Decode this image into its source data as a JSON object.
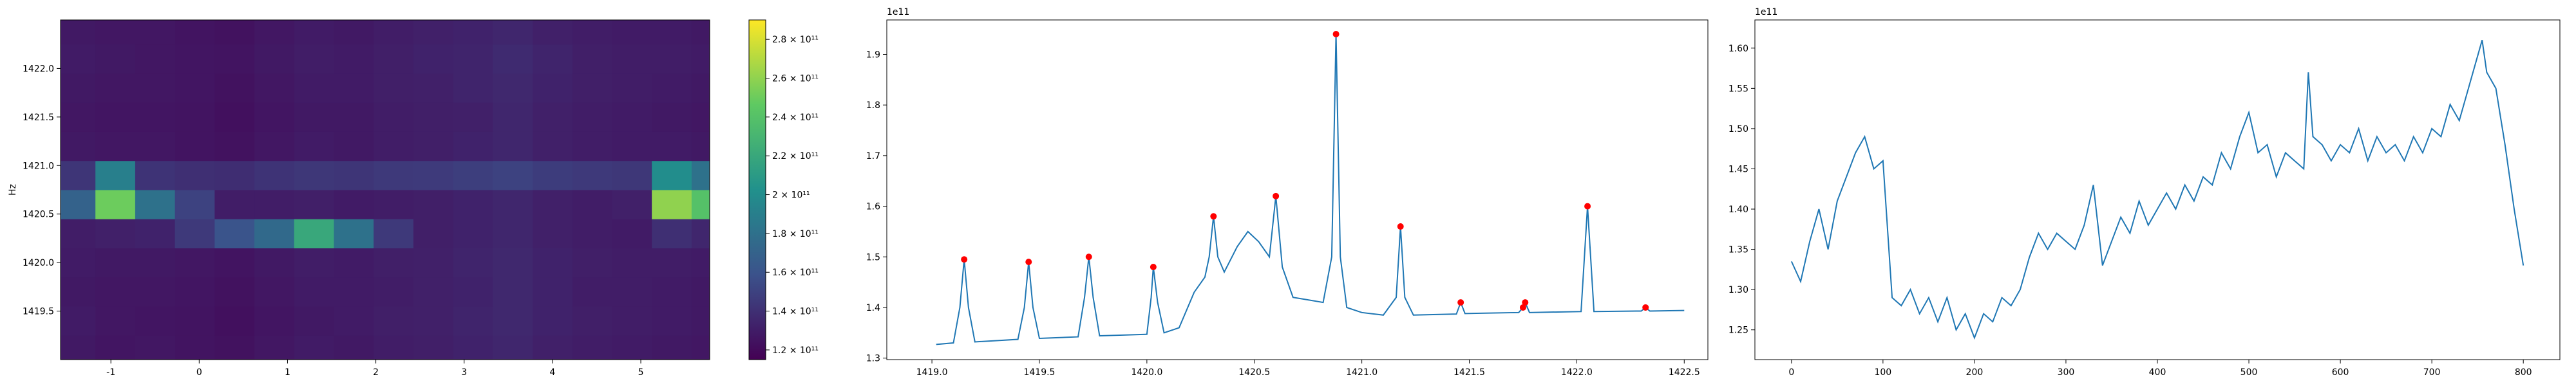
{
  "chart_data": [
    {
      "type": "heatmap",
      "ylabel": "Hz",
      "x": [
        -1.4,
        -0.95,
        -0.5,
        -0.05,
        0.4,
        0.85,
        1.3,
        1.75,
        2.2,
        2.65,
        3.1,
        3.55,
        4.0,
        4.45,
        4.9,
        5.35,
        5.8
      ],
      "y": [
        1419.1,
        1419.4,
        1419.7,
        1420.0,
        1420.3,
        1420.6,
        1420.9,
        1421.2,
        1421.5,
        1421.8,
        1422.1,
        1422.4
      ],
      "z": [
        [
          128000000000.0,
          126000000000.0,
          127000000000.0,
          125000000000.0,
          124000000000.0,
          127000000000.0,
          129000000000.0,
          128000000000.0,
          130000000000.0,
          131000000000.0,
          133000000000.0,
          135000000000.0,
          132000000000.0,
          130000000000.0,
          129000000000.0,
          128000000000.0,
          127000000000.0
        ],
        [
          129000000000.0,
          127000000000.0,
          126000000000.0,
          125000000000.0,
          123000000000.0,
          126000000000.0,
          128000000000.0,
          129000000000.0,
          131000000000.0,
          132000000000.0,
          134000000000.0,
          136000000000.0,
          133000000000.0,
          131000000000.0,
          130000000000.0,
          129000000000.0,
          128000000000.0
        ],
        [
          128000000000.0,
          127000000000.0,
          127000000000.0,
          126000000000.0,
          124000000000.0,
          127000000000.0,
          129000000000.0,
          129000000000.0,
          130000000000.0,
          132000000000.0,
          133000000000.0,
          136000000000.0,
          133000000000.0,
          130000000000.0,
          130000000000.0,
          129000000000.0,
          128000000000.0
        ],
        [
          129000000000.0,
          128000000000.0,
          128000000000.0,
          127000000000.0,
          125000000000.0,
          128000000000.0,
          130000000000.0,
          129000000000.0,
          131000000000.0,
          132000000000.0,
          134000000000.0,
          136000000000.0,
          133000000000.0,
          131000000000.0,
          130000000000.0,
          130000000000.0,
          129000000000.0
        ],
        [
          130000000000.0,
          132000000000.0,
          133000000000.0,
          145000000000.0,
          160000000000.0,
          175000000000.0,
          220000000000.0,
          180000000000.0,
          145000000000.0,
          131000000000.0,
          133000000000.0,
          135000000000.0,
          132000000000.0,
          130000000000.0,
          129000000000.0,
          140000000000.0,
          135000000000.0
        ],
        [
          170000000000.0,
          250000000000.0,
          180000000000.0,
          150000000000.0,
          130000000000.0,
          130000000000.0,
          131000000000.0,
          129000000000.0,
          130000000000.0,
          131000000000.0,
          133000000000.0,
          135000000000.0,
          132000000000.0,
          130000000000.0,
          132000000000.0,
          260000000000.0,
          240000000000.0
        ],
        [
          143000000000.0,
          190000000000.0,
          142000000000.0,
          140000000000.0,
          139000000000.0,
          142000000000.0,
          144000000000.0,
          143000000000.0,
          145000000000.0,
          146000000000.0,
          148000000000.0,
          150000000000.0,
          147000000000.0,
          145000000000.0,
          144000000000.0,
          200000000000.0,
          180000000000.0
        ],
        [
          128000000000.0,
          127000000000.0,
          127000000000.0,
          125000000000.0,
          124000000000.0,
          127000000000.0,
          129000000000.0,
          128000000000.0,
          130000000000.0,
          131000000000.0,
          133000000000.0,
          135000000000.0,
          132000000000.0,
          130000000000.0,
          129000000000.0,
          129000000000.0,
          128000000000.0
        ],
        [
          127000000000.0,
          126000000000.0,
          126000000000.0,
          125000000000.0,
          123000000000.0,
          126000000000.0,
          128000000000.0,
          128000000000.0,
          130000000000.0,
          131000000000.0,
          132000000000.0,
          135000000000.0,
          132000000000.0,
          130000000000.0,
          129000000000.0,
          128000000000.0,
          127000000000.0
        ],
        [
          128000000000.0,
          127000000000.0,
          127000000000.0,
          126000000000.0,
          124000000000.0,
          127000000000.0,
          129000000000.0,
          129000000000.0,
          131000000000.0,
          132000000000.0,
          134000000000.0,
          136000000000.0,
          133000000000.0,
          131000000000.0,
          130000000000.0,
          129000000000.0,
          128000000000.0
        ],
        [
          129000000000.0,
          128000000000.0,
          127000000000.0,
          126000000000.0,
          125000000000.0,
          128000000000.0,
          130000000000.0,
          129000000000.0,
          131000000000.0,
          133000000000.0,
          134000000000.0,
          137000000000.0,
          134000000000.0,
          131000000000.0,
          130000000000.0,
          130000000000.0,
          129000000000.0
        ],
        [
          128000000000.0,
          127000000000.0,
          127000000000.0,
          125000000000.0,
          124000000000.0,
          127000000000.0,
          129000000000.0,
          128000000000.0,
          130000000000.0,
          132000000000.0,
          133000000000.0,
          135000000000.0,
          132000000000.0,
          130000000000.0,
          129000000000.0,
          129000000000.0,
          128000000000.0
        ]
      ],
      "xlim": [
        -1.57,
        5.78
      ],
      "ylim": [
        1419.0,
        1422.5
      ],
      "xticks": [
        -1,
        0,
        1,
        2,
        3,
        4,
        5
      ],
      "yticks": [
        1419.5,
        {
          "value": 1420,
          "label": "1420.0"
        },
        1420.5,
        {
          "value": 1421,
          "label": "1421.0"
        },
        1421.5,
        {
          "value": 1422,
          "label": "1422.0"
        }
      ],
      "colormap": "viridis",
      "clim": [
        115000000000.0,
        290000000000.0
      ],
      "cticks": [
        {
          "value": 120000000000.0,
          "label": "1.2 × 10¹¹"
        },
        {
          "value": 140000000000.0,
          "label": "1.4 × 10¹¹"
        },
        {
          "value": 160000000000.0,
          "label": "1.6 × 10¹¹"
        },
        {
          "value": 180000000000.0,
          "label": "1.8 × 10¹¹"
        },
        {
          "value": 200000000000.0,
          "label": "2 × 10¹¹"
        },
        {
          "value": 220000000000.0,
          "label": "2.2 × 10¹¹"
        },
        {
          "value": 240000000000.0,
          "label": "2.4 × 10¹¹"
        },
        {
          "value": 260000000000.0,
          "label": "2.6 × 10¹¹"
        },
        {
          "value": 280000000000.0,
          "label": "2.8 × 10¹¹"
        }
      ]
    },
    {
      "type": "line",
      "offset_label": "1e11",
      "xlim": [
        1418.79,
        1422.61
      ],
      "ylim": [
        1.297,
        1.968
      ],
      "xticks": [
        {
          "value": 1419,
          "label": "1419.0"
        },
        1419.5,
        {
          "value": 1420,
          "label": "1420.0"
        },
        1420.5,
        {
          "value": 1421,
          "label": "1421.0"
        },
        1421.5,
        {
          "value": 1422,
          "label": "1422.0"
        },
        1422.5
      ],
      "yticks": [
        1.3,
        1.4,
        1.5,
        1.6,
        1.7,
        1.8,
        1.9
      ],
      "series": [
        {
          "color": "#1f77b4",
          "x": [
            1419.02,
            1419.1,
            1419.13,
            1419.15,
            1419.17,
            1419.2,
            1419.4,
            1419.43,
            1419.45,
            1419.47,
            1419.5,
            1419.68,
            1419.71,
            1419.73,
            1419.75,
            1419.78,
            1420.0,
            1420.02,
            1420.03,
            1420.05,
            1420.08,
            1420.15,
            1420.22,
            1420.27,
            1420.29,
            1420.31,
            1420.33,
            1420.36,
            1420.42,
            1420.47,
            1420.52,
            1420.57,
            1420.6,
            1420.63,
            1420.68,
            1420.75,
            1420.82,
            1420.86,
            1420.88,
            1420.9,
            1420.93,
            1421.0,
            1421.1,
            1421.16,
            1421.18,
            1421.2,
            1421.24,
            1421.44,
            1421.46,
            1421.48,
            1421.73,
            1421.75,
            1421.76,
            1421.78,
            1422.02,
            1422.05,
            1422.08,
            1422.3,
            1422.32,
            1422.34,
            1422.5
          ],
          "values": [
            1.327,
            1.33,
            1.4,
            1.495,
            1.4,
            1.332,
            1.337,
            1.4,
            1.49,
            1.4,
            1.339,
            1.342,
            1.42,
            1.5,
            1.42,
            1.344,
            1.347,
            1.42,
            1.48,
            1.41,
            1.35,
            1.36,
            1.43,
            1.46,
            1.5,
            1.58,
            1.5,
            1.47,
            1.52,
            1.55,
            1.53,
            1.5,
            1.62,
            1.48,
            1.42,
            1.415,
            1.41,
            1.5,
            1.94,
            1.5,
            1.4,
            1.39,
            1.385,
            1.42,
            1.56,
            1.42,
            1.385,
            1.387,
            1.41,
            1.388,
            1.39,
            1.4,
            1.41,
            1.39,
            1.392,
            1.6,
            1.392,
            1.393,
            1.4,
            1.393,
            1.394
          ]
        },
        {
          "type": "scatter",
          "color": "#ff0000",
          "x": [
            1419.15,
            1419.45,
            1419.73,
            1420.03,
            1420.31,
            1420.6,
            1420.88,
            1421.18,
            1421.46,
            1421.75,
            1421.76,
            1422.05,
            1422.32
          ],
          "values": [
            1.495,
            1.49,
            1.5,
            1.48,
            1.58,
            1.62,
            1.94,
            1.56,
            1.41,
            1.4,
            1.41,
            1.6,
            1.4
          ]
        }
      ]
    },
    {
      "type": "line",
      "offset_label": "1e11",
      "xlim": [
        -40,
        840
      ],
      "ylim": [
        1.213,
        1.635
      ],
      "xticks": [
        0,
        100,
        200,
        300,
        400,
        500,
        600,
        700,
        800
      ],
      "yticks": [
        1.25,
        {
          "value": 1.3,
          "label": "1.30"
        },
        1.35,
        {
          "value": 1.4,
          "label": "1.40"
        },
        1.45,
        {
          "value": 1.5,
          "label": "1.50"
        },
        1.55,
        {
          "value": 1.6,
          "label": "1.60"
        }
      ],
      "series": [
        {
          "color": "#1f77b4",
          "x": [
            0,
            10,
            20,
            30,
            40,
            50,
            60,
            70,
            80,
            90,
            100,
            110,
            120,
            130,
            140,
            150,
            160,
            170,
            180,
            190,
            200,
            210,
            220,
            230,
            240,
            250,
            260,
            270,
            280,
            290,
            300,
            310,
            320,
            330,
            340,
            350,
            360,
            370,
            380,
            390,
            400,
            410,
            420,
            430,
            440,
            450,
            460,
            470,
            480,
            490,
            500,
            510,
            520,
            530,
            540,
            550,
            560,
            565,
            570,
            580,
            590,
            600,
            610,
            620,
            630,
            640,
            650,
            660,
            670,
            680,
            690,
            700,
            710,
            720,
            730,
            740,
            750,
            755,
            760,
            770,
            780,
            790,
            800
          ],
          "values": [
            1.335,
            1.31,
            1.36,
            1.4,
            1.35,
            1.41,
            1.44,
            1.47,
            1.49,
            1.45,
            1.46,
            1.29,
            1.28,
            1.3,
            1.27,
            1.29,
            1.26,
            1.29,
            1.25,
            1.27,
            1.24,
            1.27,
            1.26,
            1.29,
            1.28,
            1.3,
            1.34,
            1.37,
            1.35,
            1.37,
            1.36,
            1.35,
            1.38,
            1.43,
            1.33,
            1.36,
            1.39,
            1.37,
            1.41,
            1.38,
            1.4,
            1.42,
            1.4,
            1.43,
            1.41,
            1.44,
            1.43,
            1.47,
            1.45,
            1.49,
            1.52,
            1.47,
            1.48,
            1.44,
            1.47,
            1.46,
            1.45,
            1.57,
            1.49,
            1.48,
            1.46,
            1.48,
            1.47,
            1.5,
            1.46,
            1.49,
            1.47,
            1.48,
            1.46,
            1.49,
            1.47,
            1.5,
            1.49,
            1.53,
            1.51,
            1.55,
            1.59,
            1.61,
            1.57,
            1.55,
            1.48,
            1.4,
            1.33
          ]
        }
      ]
    }
  ]
}
